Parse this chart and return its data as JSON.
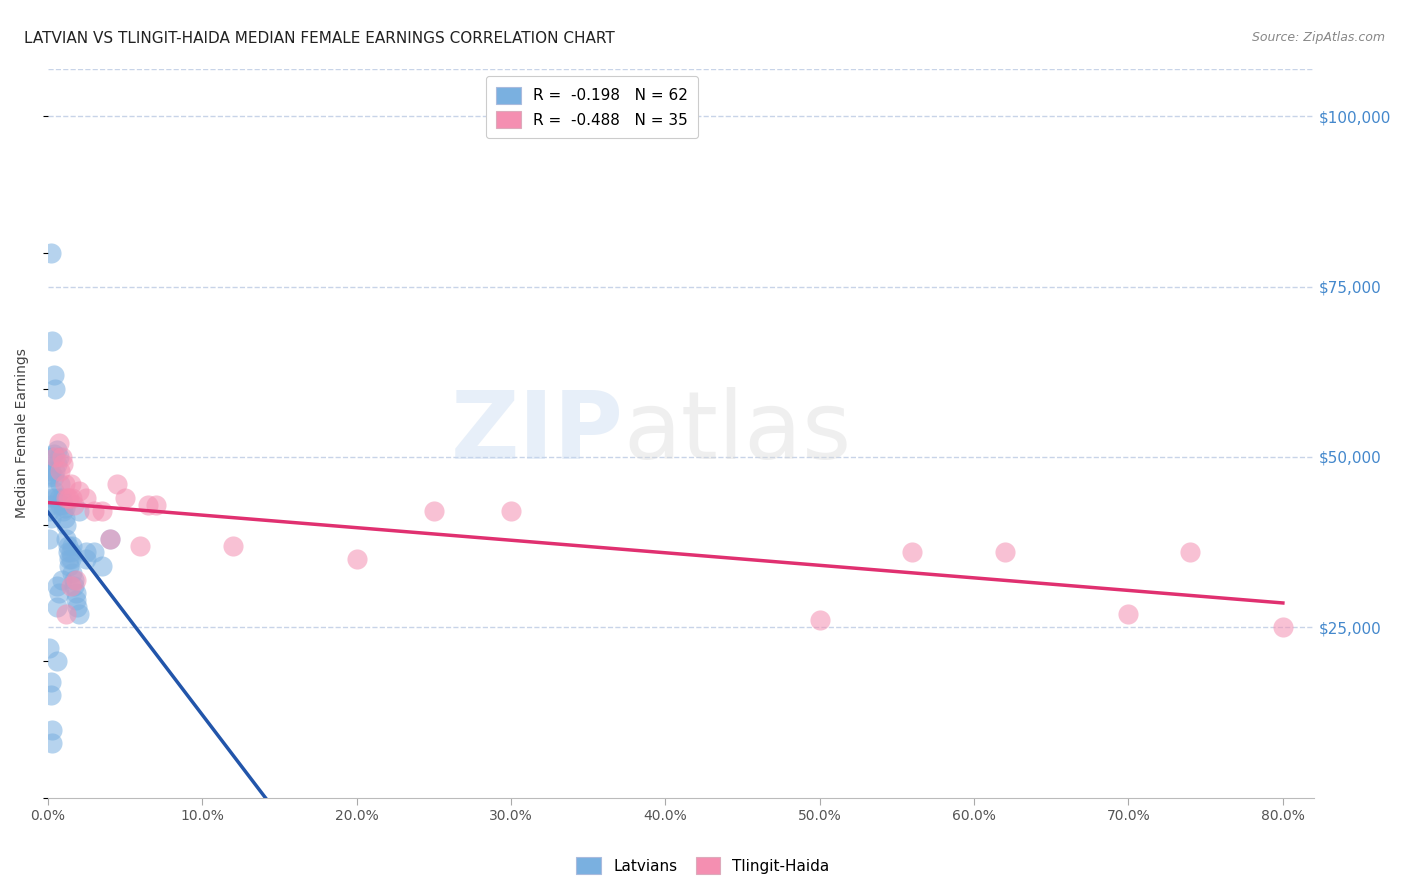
{
  "title": "LATVIAN VS TLINGIT-HAIDA MEDIAN FEMALE EARNINGS CORRELATION CHART",
  "source": "Source: ZipAtlas.com",
  "ylabel": "Median Female Earnings",
  "ytick_labels": [
    "$25,000",
    "$50,000",
    "$75,000",
    "$100,000"
  ],
  "ytick_values": [
    25000,
    50000,
    75000,
    100000
  ],
  "ylim": [
    0,
    107000
  ],
  "xlim": [
    0.0,
    0.82
  ],
  "blue_color": "#7ab0e0",
  "pink_color": "#f48fb1",
  "blue_line_solid_color": "#2255aa",
  "pink_line_color": "#e03070",
  "blue_line_dash_color": "#99bbdd",
  "grid_color": "#c8d4e8",
  "background_color": "#ffffff",
  "right_axis_color": "#4488cc",
  "title_color": "#222222",
  "source_color": "#888888",
  "blue_x": [
    0.001,
    0.002,
    0.002,
    0.003,
    0.004,
    0.004,
    0.005,
    0.005,
    0.006,
    0.006,
    0.007,
    0.007,
    0.008,
    0.008,
    0.009,
    0.009,
    0.01,
    0.01,
    0.011,
    0.011,
    0.012,
    0.012,
    0.013,
    0.013,
    0.014,
    0.014,
    0.015,
    0.015,
    0.016,
    0.016,
    0.017,
    0.017,
    0.018,
    0.018,
    0.019,
    0.02,
    0.002,
    0.003,
    0.004,
    0.005,
    0.001,
    0.002,
    0.003,
    0.006,
    0.006,
    0.007,
    0.009,
    0.02,
    0.025,
    0.025,
    0.03,
    0.035,
    0.04,
    0.002,
    0.003,
    0.001,
    0.002,
    0.002,
    0.003,
    0.004,
    0.001,
    0.006
  ],
  "blue_y": [
    47000,
    48000,
    47500,
    50000,
    50500,
    47000,
    48000,
    44000,
    51000,
    49000,
    50000,
    44000,
    46000,
    43000,
    44000,
    43500,
    43000,
    42000,
    42500,
    41000,
    40000,
    38000,
    37000,
    36000,
    35000,
    34000,
    35000,
    36000,
    37000,
    33000,
    32000,
    31000,
    30000,
    29000,
    28000,
    27000,
    80000,
    67000,
    62000,
    60000,
    22000,
    17000,
    10000,
    20000,
    31000,
    30000,
    32000,
    42000,
    35000,
    36000,
    36000,
    34000,
    38000,
    15000,
    8000,
    42000,
    41000,
    43000,
    44000,
    45000,
    38000,
    28000
  ],
  "pink_x": [
    0.005,
    0.007,
    0.008,
    0.009,
    0.01,
    0.011,
    0.012,
    0.013,
    0.014,
    0.015,
    0.016,
    0.017,
    0.018,
    0.02,
    0.025,
    0.03,
    0.035,
    0.04,
    0.045,
    0.05,
    0.06,
    0.065,
    0.07,
    0.2,
    0.25,
    0.3,
    0.5,
    0.56,
    0.62,
    0.7,
    0.74,
    0.8,
    0.012,
    0.015,
    0.12
  ],
  "pink_y": [
    50000,
    52000,
    48000,
    50000,
    49000,
    46000,
    44000,
    44000,
    44000,
    46000,
    44000,
    43000,
    32000,
    45000,
    44000,
    42000,
    42000,
    38000,
    46000,
    44000,
    37000,
    43000,
    43000,
    35000,
    42000,
    42000,
    26000,
    36000,
    36000,
    27000,
    36000,
    25000,
    27000,
    31000,
    37000
  ]
}
